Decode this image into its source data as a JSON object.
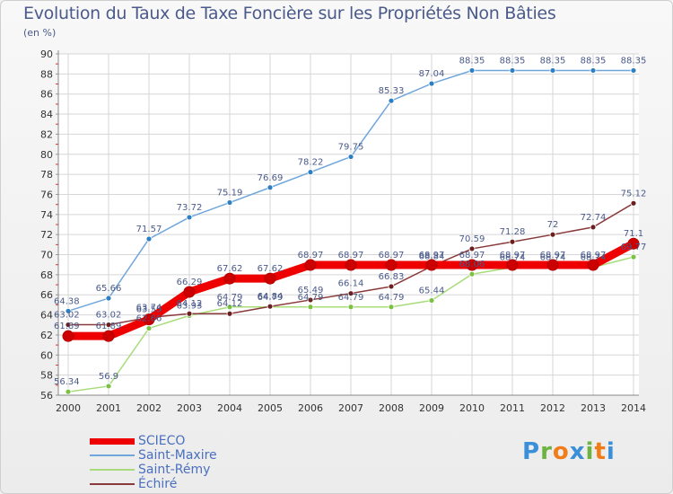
{
  "title": "Evolution du Taux de Taxe Foncière sur les Propriétés Non Bâties",
  "subtitle": "(en %)",
  "logo": {
    "letters": [
      "P",
      "r",
      "o",
      "x",
      "i",
      "t",
      "i"
    ],
    "colors": [
      "#3a8fd8",
      "#6cb33f",
      "#f07d1a",
      "#3a8fd8",
      "#6cb33f",
      "#f07d1a",
      "#3a8fd8"
    ]
  },
  "legend": [
    "SCIECO",
    "Saint-Maxire",
    "Saint-Rémy",
    "Échiré"
  ],
  "chart_data": {
    "type": "line",
    "title": "Evolution du Taux de Taxe Foncière sur les Propriétés Non Bâties",
    "ylabel": "(en %)",
    "xlabel": "",
    "ylim": [
      56,
      90
    ],
    "yticks": [
      56,
      58,
      60,
      62,
      64,
      66,
      68,
      70,
      72,
      74,
      76,
      78,
      80,
      82,
      84,
      86,
      88,
      90
    ],
    "x": [
      "2000",
      "2001",
      "2002",
      "2003",
      "2004",
      "2005",
      "2006",
      "2007",
      "2008",
      "2009",
      "2010",
      "2011",
      "2012",
      "2013",
      "2014"
    ],
    "grid": true,
    "series": [
      {
        "name": "Saint-Maxire",
        "color": "#6fa6dc",
        "dot": "#2c7fc4",
        "values": [
          64.38,
          65.66,
          71.57,
          73.72,
          75.19,
          76.69,
          78.22,
          79.75,
          85.33,
          87.04,
          88.35,
          88.35,
          88.35,
          88.35,
          88.35
        ],
        "labels": [
          "64.38",
          "65.66",
          "71.57",
          "73.72",
          "75.19",
          "76.69",
          "78.22",
          "79.75",
          "85.33",
          "87.04",
          "88.35",
          "88.35",
          "88.35",
          "88.35",
          "88.35"
        ]
      },
      {
        "name": "Saint-Rémy",
        "color": "#a8dc7a",
        "dot": "#7bc142",
        "values": [
          56.34,
          56.9,
          62.66,
          63.93,
          64.79,
          64.79,
          64.79,
          64.79,
          64.79,
          65.44,
          68.06,
          68.74,
          68.74,
          68.74,
          69.77
        ],
        "labels": [
          "56.34",
          "56.9",
          "62.66",
          "63.93",
          "64.79",
          "64.79",
          "64.79",
          "64.79",
          "64.79",
          "65.44",
          "68.06",
          "68.74",
          "68.74",
          "68.74",
          "69.77"
        ]
      },
      {
        "name": "Échiré",
        "color": "#8a3a3a",
        "dot": "#6b1f1f",
        "values": [
          63.02,
          63.02,
          63.74,
          64.12,
          64.12,
          64.84,
          65.49,
          66.14,
          66.83,
          68.84,
          70.59,
          71.28,
          72,
          72.74,
          75.12
        ],
        "labels": [
          "63.02",
          "63.02",
          "63.74",
          "64.12",
          "64.12",
          "64.84",
          "65.49",
          "66.14",
          "66.83",
          "68.84",
          "70.59",
          "71.28",
          "72",
          "72.74",
          "75.12"
        ]
      },
      {
        "name": "SCIECO",
        "color": "#ee0000",
        "dot": "#cc0000",
        "values": [
          61.89,
          61.89,
          63.55,
          66.29,
          67.62,
          67.62,
          68.97,
          68.97,
          68.97,
          68.97,
          68.97,
          68.97,
          68.97,
          68.97,
          71.1
        ],
        "labels": [
          "61.89",
          "61.89",
          "63.55",
          "66.29",
          "67.62",
          "67.62",
          "68.97",
          "68.97",
          "68.97",
          "68.97",
          "68.97",
          "68.97",
          "68.97",
          "68.97",
          "71.1"
        ]
      }
    ]
  }
}
